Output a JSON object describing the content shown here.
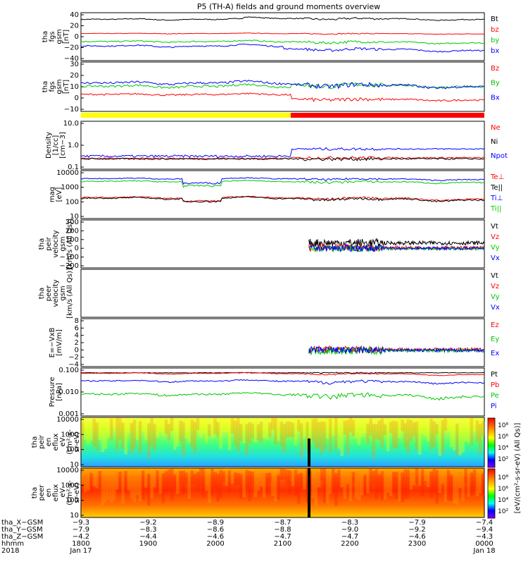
{
  "title": "P5 (TH-A) fields and ground moments overview",
  "chart_data": [
    {
      "id": "p1",
      "type": "line",
      "ylabel": [
        "tha",
        "fgs",
        "gsm",
        "[nT]"
      ],
      "yticks": [
        "40",
        "20",
        "0",
        "−20",
        "−40"
      ],
      "ylim": [
        -40,
        40
      ],
      "scale": "linear",
      "series": [
        {
          "name": "Bt",
          "color": "#000000"
        },
        {
          "name": "bz",
          "color": "#ff0000"
        },
        {
          "name": "by",
          "color": "#00c800"
        },
        {
          "name": "bx",
          "color": "#0000ff"
        }
      ]
    },
    {
      "id": "p2",
      "type": "line",
      "ylabel": [
        "tha",
        "fgs",
        "gsm",
        "[nT]"
      ],
      "yticks": [
        "30",
        "20",
        "10",
        "0",
        "−10"
      ],
      "ylim": [
        -15,
        30
      ],
      "scale": "linear",
      "series": [
        {
          "name": "Bz",
          "color": "#ff0000"
        },
        {
          "name": "By",
          "color": "#00c800"
        },
        {
          "name": "Bx",
          "color": "#0000ff"
        }
      ]
    },
    {
      "id": "mode",
      "type": "bar",
      "segments": [
        {
          "from": 0,
          "to": 0.52,
          "color": "#ffff00"
        },
        {
          "from": 0.52,
          "to": 1,
          "color": "#ff0000"
        }
      ]
    },
    {
      "id": "p3",
      "type": "line",
      "ylabel": [
        "Density",
        "[1/cc]",
        "[cm−3]"
      ],
      "yticks": [
        "10.0",
        "1.0",
        "0.1"
      ],
      "ylim": [
        0.1,
        10
      ],
      "scale": "log",
      "series": [
        {
          "name": "Ne",
          "color": "#ff0000"
        },
        {
          "name": "Ni",
          "color": "#000000"
        },
        {
          "name": "Npot",
          "color": "#0000ff"
        }
      ]
    },
    {
      "id": "p4",
      "type": "line",
      "ylabel": [
        "mag",
        "[eV]"
      ],
      "yticks": [
        "10000",
        "1000",
        "100",
        "10"
      ],
      "ylim": [
        10,
        10000
      ],
      "scale": "log",
      "series": [
        {
          "name": "Te⊥",
          "color": "#ff0000"
        },
        {
          "name": "Te||",
          "color": "#000000"
        },
        {
          "name": "Ti⊥",
          "color": "#0000ff"
        },
        {
          "name": "Ti||",
          "color": "#00c800"
        }
      ]
    },
    {
      "id": "p5",
      "type": "line",
      "ylabel": [
        "tha",
        "peir",
        "velocity",
        "gsm",
        "[km/s (All Qs)]"
      ],
      "yticks": [
        "300",
        "200",
        "100",
        "0",
        "−100",
        "−200"
      ],
      "ylim": [
        -200,
        300
      ],
      "scale": "linear",
      "series": [
        {
          "name": "Vt",
          "color": "#000000"
        },
        {
          "name": "Vz",
          "color": "#ff0000"
        },
        {
          "name": "Vy",
          "color": "#00c800"
        },
        {
          "name": "Vx",
          "color": "#0000ff"
        }
      ]
    },
    {
      "id": "p6",
      "type": "line",
      "ylabel": [
        "tha",
        "peer",
        "velocity",
        "gsm",
        "[km/s (All Qs)]"
      ],
      "yticks": [],
      "ylim": [
        -1,
        1
      ],
      "scale": "linear",
      "series": [
        {
          "name": "Vt",
          "color": "#000000"
        },
        {
          "name": "Vz",
          "color": "#ff0000"
        },
        {
          "name": "Vy",
          "color": "#00c800"
        },
        {
          "name": "Vx",
          "color": "#0000ff"
        }
      ]
    },
    {
      "id": "p7",
      "type": "line",
      "ylabel": [
        "E=−VxB",
        "[mV/m]"
      ],
      "yticks": [
        "8",
        "6",
        "4",
        "2",
        "0",
        "−2",
        "−4"
      ],
      "ylim": [
        -4,
        8
      ],
      "scale": "linear",
      "series": [
        {
          "name": "Ez",
          "color": "#ff0000"
        },
        {
          "name": "Ey",
          "color": "#00c800"
        },
        {
          "name": "Ex",
          "color": "#0000ff"
        }
      ]
    },
    {
      "id": "p8",
      "type": "line",
      "ylabel": [
        "Pressure",
        "[nPa]"
      ],
      "yticks": [
        "0.100",
        "0.010",
        "0.001"
      ],
      "ylim": [
        0.001,
        0.3
      ],
      "scale": "log",
      "series": [
        {
          "name": "Pt",
          "color": "#000000"
        },
        {
          "name": "Pb",
          "color": "#ff0000"
        },
        {
          "name": "Pe",
          "color": "#00c800"
        },
        {
          "name": "Pi",
          "color": "#0000ff"
        }
      ]
    },
    {
      "id": "s1",
      "type": "heatmap",
      "ylabel": [
        "tha",
        "peir",
        "en",
        "eflux",
        "eV",
        "(cm²-s-",
        "sr-eV)"
      ],
      "yticks": [
        "10000",
        "1000",
        "100",
        "10"
      ],
      "ylim": [
        5,
        20000
      ],
      "scale": "log"
    },
    {
      "id": "s2",
      "type": "heatmap",
      "ylabel": [
        "tha",
        "peer",
        "en",
        "eflux",
        "eV",
        "(cm²-s-",
        "sr-eV)"
      ],
      "yticks": [
        "10000",
        "1000",
        "100",
        "10"
      ],
      "ylim": [
        5,
        20000
      ],
      "scale": "log"
    }
  ],
  "colorbar": {
    "label": "[eV/(cm²-s-sr-eV) (All Qs)]",
    "ticks_top": [
      "10⁸",
      "10⁶",
      "10⁴",
      "10²"
    ],
    "ticks_bottom": [
      "10⁸",
      "10⁶",
      "10⁴",
      "10²"
    ]
  },
  "xaxis": {
    "rows": [
      {
        "label": "tha_X−GSM",
        "values": [
          "−9.3",
          "−9.2",
          "−8.9",
          "−8.7",
          "−8.3",
          "−7.9",
          "−7.4"
        ]
      },
      {
        "label": "tha_Y−GSM",
        "values": [
          "−7.9",
          "−8.3",
          "−8.6",
          "−8.8",
          "−9.0",
          "−9.2",
          "−9.4"
        ]
      },
      {
        "label": "tha_Z−GSM",
        "values": [
          "−4.2",
          "−4.4",
          "−4.6",
          "−4.7",
          "−4.7",
          "−4.6",
          "−4.3"
        ]
      },
      {
        "label": "hhmm",
        "values": [
          "1800",
          "1900",
          "2000",
          "2100",
          "2200",
          "2300",
          "0000"
        ]
      },
      {
        "label": "2018",
        "values": [
          "Jan 17",
          "",
          "",
          "",
          "",
          "",
          "Jan 18"
        ]
      }
    ]
  }
}
